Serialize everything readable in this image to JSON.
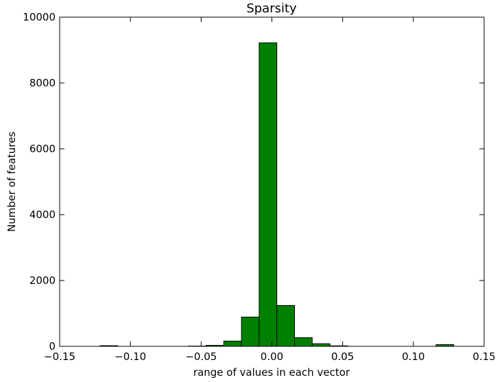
{
  "chart_data": {
    "type": "bar",
    "title": "Sparsity",
    "xlabel": "range of values in each vector",
    "ylabel": "Number of features",
    "xlim": [
      -0.15,
      0.15
    ],
    "ylim": [
      0,
      10000
    ],
    "grid": false,
    "x_ticks": [
      -0.15,
      -0.1,
      -0.05,
      0.0,
      0.05,
      0.1,
      0.15
    ],
    "x_tick_labels": [
      "−0.15",
      "−0.10",
      "−0.05",
      "0.00",
      "0.05",
      "0.10",
      "0.15"
    ],
    "y_ticks": [
      0,
      2000,
      4000,
      6000,
      8000,
      10000
    ],
    "y_tick_labels": [
      "0",
      "2000",
      "4000",
      "6000",
      "8000",
      "10000"
    ],
    "bar_color": "#008000",
    "bins": [
      {
        "x0": -0.1215,
        "x1": -0.109,
        "count": 20
      },
      {
        "x0": -0.059,
        "x1": -0.0465,
        "count": 8
      },
      {
        "x0": -0.0465,
        "x1": -0.034,
        "count": 30
      },
      {
        "x0": -0.034,
        "x1": -0.0215,
        "count": 160
      },
      {
        "x0": -0.0215,
        "x1": -0.009,
        "count": 890
      },
      {
        "x0": -0.009,
        "x1": 0.0035,
        "count": 9220
      },
      {
        "x0": 0.0035,
        "x1": 0.016,
        "count": 1240
      },
      {
        "x0": 0.016,
        "x1": 0.0285,
        "count": 265
      },
      {
        "x0": 0.0285,
        "x1": 0.041,
        "count": 80
      },
      {
        "x0": 0.041,
        "x1": 0.0535,
        "count": 15
      },
      {
        "x0": 0.116,
        "x1": 0.1285,
        "count": 55
      }
    ]
  }
}
